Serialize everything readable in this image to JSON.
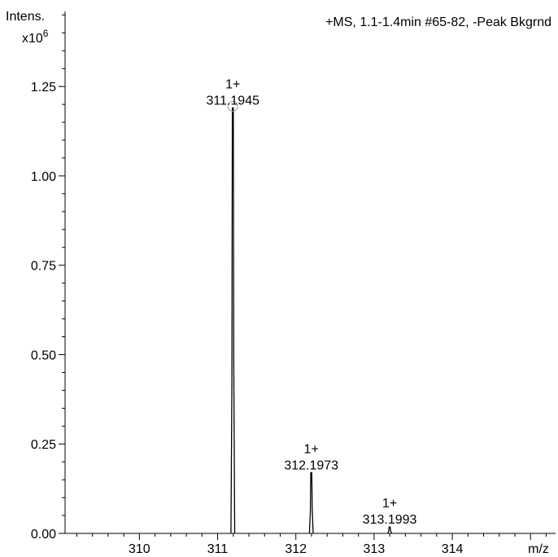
{
  "chart_data": {
    "type": "line",
    "title": "+MS, 1.1-1.4min #65-82, -Peak Bkgrnd",
    "ylabel": "Intens.",
    "y_multiplier": "x10",
    "y_multiplier_exp": "6",
    "xlabel": "m/z",
    "xlim": [
      309.05,
      315.32
    ],
    "ylim": [
      0,
      1.46
    ],
    "x_ticks": [
      310,
      311,
      312,
      313,
      314
    ],
    "x_tick_labels": [
      "310",
      "311",
      "312",
      "313",
      "314"
    ],
    "y_ticks": [
      0,
      0.25,
      0.5,
      0.75,
      1.0,
      1.25
    ],
    "y_tick_labels": [
      "0.00",
      "0.25",
      "0.50",
      "0.75",
      "1.00",
      "1.25"
    ],
    "grid": false,
    "series": [
      {
        "peaks": [
          {
            "mz": 311.1945,
            "intensity": 1.19,
            "label_mz": "311.1945",
            "label_charge": "1+"
          },
          {
            "mz": 312.1973,
            "intensity": 0.17,
            "label_mz": "312.1973",
            "label_charge": "1+"
          },
          {
            "mz": 313.1993,
            "intensity": 0.018,
            "label_mz": "313.1993",
            "label_charge": "1+"
          }
        ]
      }
    ]
  }
}
